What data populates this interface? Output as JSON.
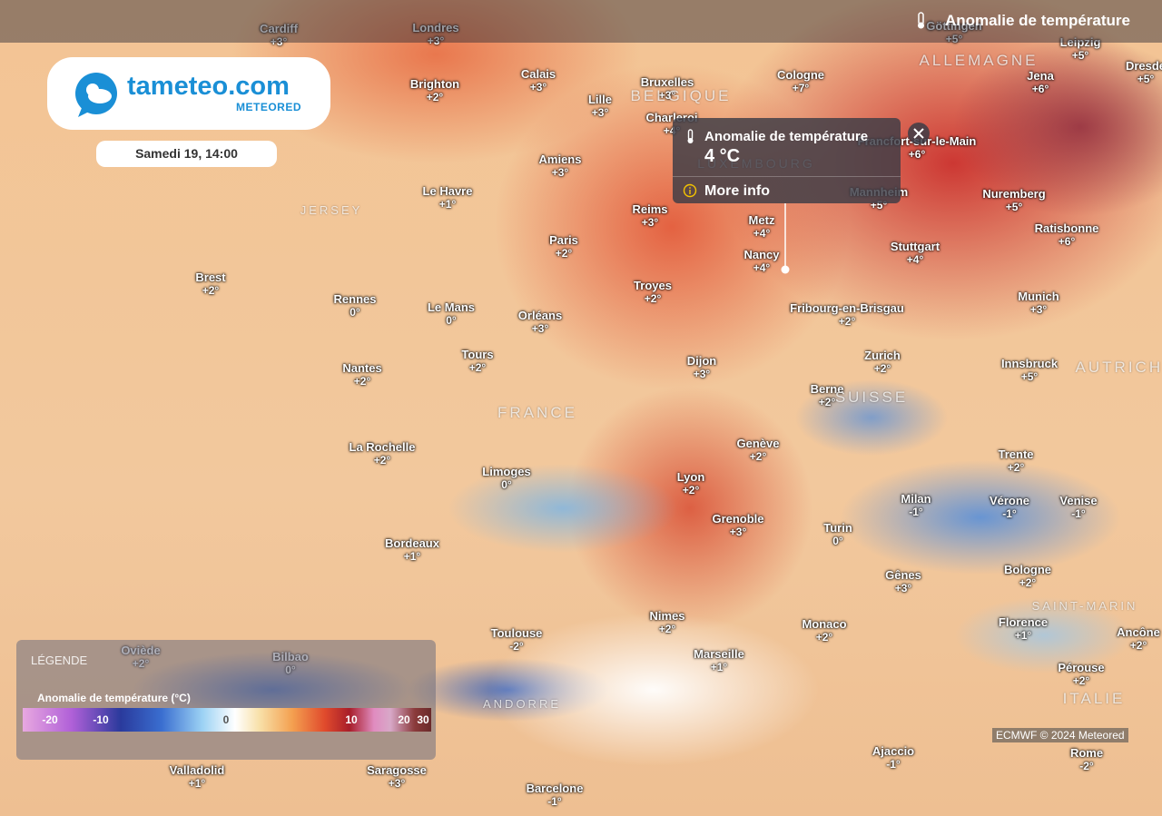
{
  "header": {
    "title": "Anomalie de température"
  },
  "logo": {
    "name": "tameteo.com",
    "brand": "METEORED"
  },
  "date": "Samedi 19, 14:00",
  "tooltip": {
    "title": "Anomalie de température",
    "value": "4 °C",
    "link": "More info"
  },
  "legend": {
    "heading": "LÉGENDE",
    "title": "Anomalie de température (°C)",
    "ticks": [
      -20,
      -10,
      0,
      10,
      20,
      30
    ]
  },
  "credit": "ECMWF © 2024 Meteored",
  "countries": [
    "ALLEMAGNE",
    "BELGIQUE",
    "LUXEMBOURG",
    "FRANCE",
    "SUISSE",
    "AUTRICHE",
    "ITALIE",
    "ANDORRE",
    "JERSEY",
    "SAINT-MARIN"
  ],
  "cities": [
    {
      "name": "Cardiff",
      "anomaly": "+3°"
    },
    {
      "name": "Londres",
      "anomaly": "+3°"
    },
    {
      "name": "Brighton",
      "anomaly": "+2°"
    },
    {
      "name": "Calais",
      "anomaly": "+3°"
    },
    {
      "name": "Lille",
      "anomaly": "+3°"
    },
    {
      "name": "Bruxelles",
      "anomaly": "+3°"
    },
    {
      "name": "Charleroi",
      "anomaly": "+4°"
    },
    {
      "name": "Cologne",
      "anomaly": "+7°"
    },
    {
      "name": "Göttingen",
      "anomaly": "+5°"
    },
    {
      "name": "Leipzig",
      "anomaly": "+5°"
    },
    {
      "name": "Jena",
      "anomaly": "+6°"
    },
    {
      "name": "Dresde",
      "anomaly": "+5°"
    },
    {
      "name": "Francfort-sur-le-Main",
      "anomaly": "+6°"
    },
    {
      "name": "Mannheim",
      "anomaly": "+5°"
    },
    {
      "name": "Nuremberg",
      "anomaly": "+5°"
    },
    {
      "name": "Ratisbonne",
      "anomaly": "+6°"
    },
    {
      "name": "Stuttgart",
      "anomaly": "+4°"
    },
    {
      "name": "Munich",
      "anomaly": "+3°"
    },
    {
      "name": "Amiens",
      "anomaly": "+3°"
    },
    {
      "name": "Le Havre",
      "anomaly": "+1°"
    },
    {
      "name": "Reims",
      "anomaly": "+3°"
    },
    {
      "name": "Metz",
      "anomaly": "+4°"
    },
    {
      "name": "Nancy",
      "anomaly": "+4°"
    },
    {
      "name": "Paris",
      "anomaly": "+2°"
    },
    {
      "name": "Troyes",
      "anomaly": "+2°"
    },
    {
      "name": "Fribourg-en-Brisgau",
      "anomaly": "+2°"
    },
    {
      "name": "Brest",
      "anomaly": "+2°"
    },
    {
      "name": "Rennes",
      "anomaly": "0°"
    },
    {
      "name": "Le Mans",
      "anomaly": "0°"
    },
    {
      "name": "Orléans",
      "anomaly": "+3°"
    },
    {
      "name": "Tours",
      "anomaly": "+2°"
    },
    {
      "name": "Dijon",
      "anomaly": "+3°"
    },
    {
      "name": "Zurich",
      "anomaly": "+2°"
    },
    {
      "name": "Innsbruck",
      "anomaly": "+5°"
    },
    {
      "name": "Nantes",
      "anomaly": "+2°"
    },
    {
      "name": "Berne",
      "anomaly": "+2°"
    },
    {
      "name": "La Rochelle",
      "anomaly": "+2°"
    },
    {
      "name": "Genève",
      "anomaly": "+2°"
    },
    {
      "name": "Trente",
      "anomaly": "+2°"
    },
    {
      "name": "Limoges",
      "anomaly": "0°"
    },
    {
      "name": "Lyon",
      "anomaly": "+2°"
    },
    {
      "name": "Milan",
      "anomaly": "-1°"
    },
    {
      "name": "Vérone",
      "anomaly": "-1°"
    },
    {
      "name": "Venise",
      "anomaly": "-1°"
    },
    {
      "name": "Grenoble",
      "anomaly": "+3°"
    },
    {
      "name": "Turin",
      "anomaly": "0°"
    },
    {
      "name": "Bordeaux",
      "anomaly": "+1°"
    },
    {
      "name": "Gênes",
      "anomaly": "+3°"
    },
    {
      "name": "Bologne",
      "anomaly": "+2°"
    },
    {
      "name": "Nimes",
      "anomaly": "+2°"
    },
    {
      "name": "Monaco",
      "anomaly": "+2°"
    },
    {
      "name": "Florence",
      "anomaly": "+1°"
    },
    {
      "name": "Toulouse",
      "anomaly": "-2°"
    },
    {
      "name": "Marseille",
      "anomaly": "+1°"
    },
    {
      "name": "Ancône",
      "anomaly": "+2°"
    },
    {
      "name": "Oviède",
      "anomaly": "+2°"
    },
    {
      "name": "Bilbao",
      "anomaly": "0°"
    },
    {
      "name": "Pérouse",
      "anomaly": "+2°"
    },
    {
      "name": "Ajaccio",
      "anomaly": "-1°"
    },
    {
      "name": "Rome",
      "anomaly": "-2°"
    },
    {
      "name": "Valladolid",
      "anomaly": "+1°"
    },
    {
      "name": "Saragosse",
      "anomaly": "+3°"
    },
    {
      "name": "Barcelone",
      "anomaly": "-1°"
    }
  ]
}
